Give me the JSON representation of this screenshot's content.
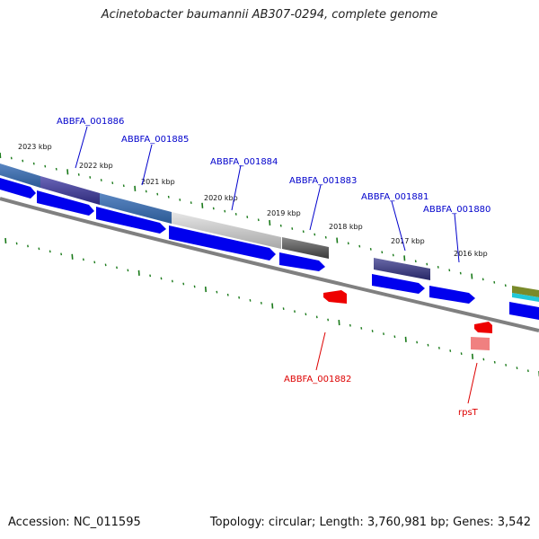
{
  "title": "Acinetobacter baumannii AB307-0294, complete genome",
  "footer": {
    "accession": "Accession: NC_011595",
    "info": "Topology: circular; Length: 3,760,981 bp; Genes: 3,542"
  },
  "kbp_ticks": [
    "2023 kbp",
    "2022 kbp",
    "2021 kbp",
    "2020 kbp",
    "2019 kbp",
    "2018 kbp",
    "2017 kbp",
    "2016 kbp"
  ],
  "gene_labels": [
    {
      "text": "ABBFA_001886",
      "strand": "plus"
    },
    {
      "text": "ABBFA_001885",
      "strand": "plus"
    },
    {
      "text": "ABBFA_001884",
      "strand": "plus"
    },
    {
      "text": "ABBFA_001883",
      "strand": "plus"
    },
    {
      "text": "ABBFA_001881",
      "strand": "plus"
    },
    {
      "text": "ABBFA_001880",
      "strand": "plus"
    },
    {
      "text": "ABBFA_001882",
      "strand": "minus"
    },
    {
      "text": "rpsT",
      "strand": "minus"
    }
  ],
  "colors": {
    "plus_label": "#0000cc",
    "minus_label": "#dd0000",
    "cds_forward": "#0000ee",
    "cds_reverse": "#ee0000",
    "tick": "#1a7a1a",
    "backbone": "#808080"
  }
}
